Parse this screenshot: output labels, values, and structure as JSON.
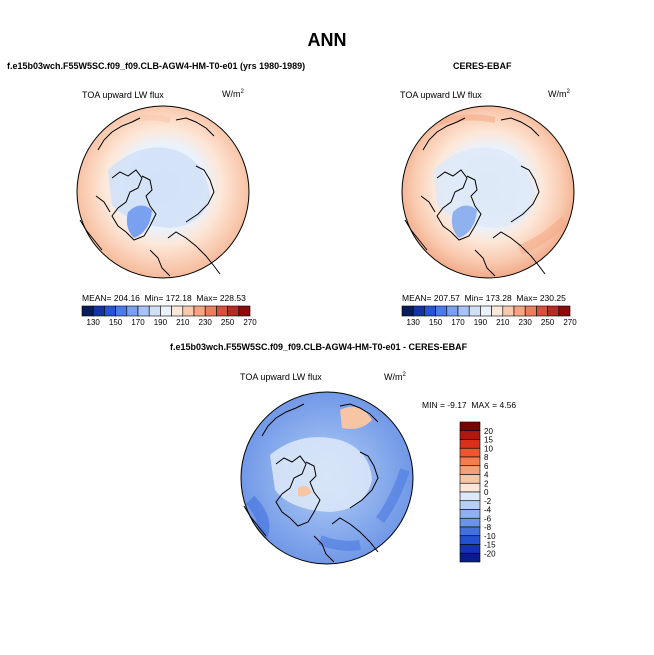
{
  "chart_data": {
    "type": "polar_map_panels",
    "title": "ANN",
    "panels": [
      {
        "id": "model",
        "subtitle": "f.e15b03wch.F55W5SC.f09_f09.CLB-AGW4-HM-T0-e01 (yrs 1980-1989)",
        "field": "TOA upward LW flux",
        "units": "W/m",
        "units_exp": "2",
        "stats": {
          "mean": "204.16",
          "min": "172.18",
          "max": "228.53"
        },
        "stats_text": {
          "mean_label": "MEAN=",
          "min_label": "Min=",
          "max_label": "Max="
        },
        "colorbar": {
          "levels": [
            "130",
            "150",
            "170",
            "190",
            "210",
            "230",
            "250",
            "270"
          ],
          "colors": [
            "#081d58",
            "#1533a8",
            "#2554d8",
            "#4a7be8",
            "#7aa0f0",
            "#a8c4f6",
            "#cfe0f8",
            "#eaf2fc",
            "#fde7d8",
            "#f9c9ae",
            "#f4a582",
            "#ea7d5b",
            "#d6513b",
            "#b82a24",
            "#8b0a0a"
          ]
        }
      },
      {
        "id": "obs",
        "subtitle": "CERES-EBAF",
        "field": "TOA upward LW flux",
        "units": "W/m",
        "units_exp": "2",
        "stats": {
          "mean": "207.57",
          "min": "173.28",
          "max": "230.25"
        },
        "stats_text": {
          "mean_label": "MEAN=",
          "min_label": "Min=",
          "max_label": "Max="
        },
        "colorbar": {
          "levels": [
            "130",
            "150",
            "170",
            "190",
            "210",
            "230",
            "250",
            "270"
          ],
          "colors": [
            "#081d58",
            "#1533a8",
            "#2554d8",
            "#4a7be8",
            "#7aa0f0",
            "#a8c4f6",
            "#cfe0f8",
            "#eaf2fc",
            "#fde7d8",
            "#f9c9ae",
            "#f4a582",
            "#ea7d5b",
            "#d6513b",
            "#b82a24",
            "#8b0a0a"
          ]
        }
      },
      {
        "id": "diff",
        "subtitle": "f.e15b03wch.F55W5SC.f09_f09.CLB-AGW4-HM-T0-e01 - CERES-EBAF",
        "field": "TOA upward LW flux",
        "units": "W/m",
        "units_exp": "2",
        "stats": {
          "min": "-9.17",
          "max": "4.56"
        },
        "stats_text": {
          "min_label": "MIN =",
          "max_label": "MAX ="
        },
        "colorbar": {
          "orientation": "vertical",
          "levels": [
            "20",
            "15",
            "10",
            "8",
            "6",
            "4",
            "2",
            "0",
            "-2",
            "-4",
            "-6",
            "-8",
            "-10",
            "-15",
            "-20"
          ],
          "colors": [
            "#7a0403",
            "#b2170e",
            "#d8301a",
            "#ee5632",
            "#f47c4e",
            "#f6a071",
            "#f8c5a4",
            "#fbe6d8",
            "#dde9f8",
            "#b7cff4",
            "#8fb1ee",
            "#6b93e6",
            "#4271dd",
            "#2350d0",
            "#1333b0",
            "#0a1c8a"
          ]
        }
      }
    ]
  }
}
